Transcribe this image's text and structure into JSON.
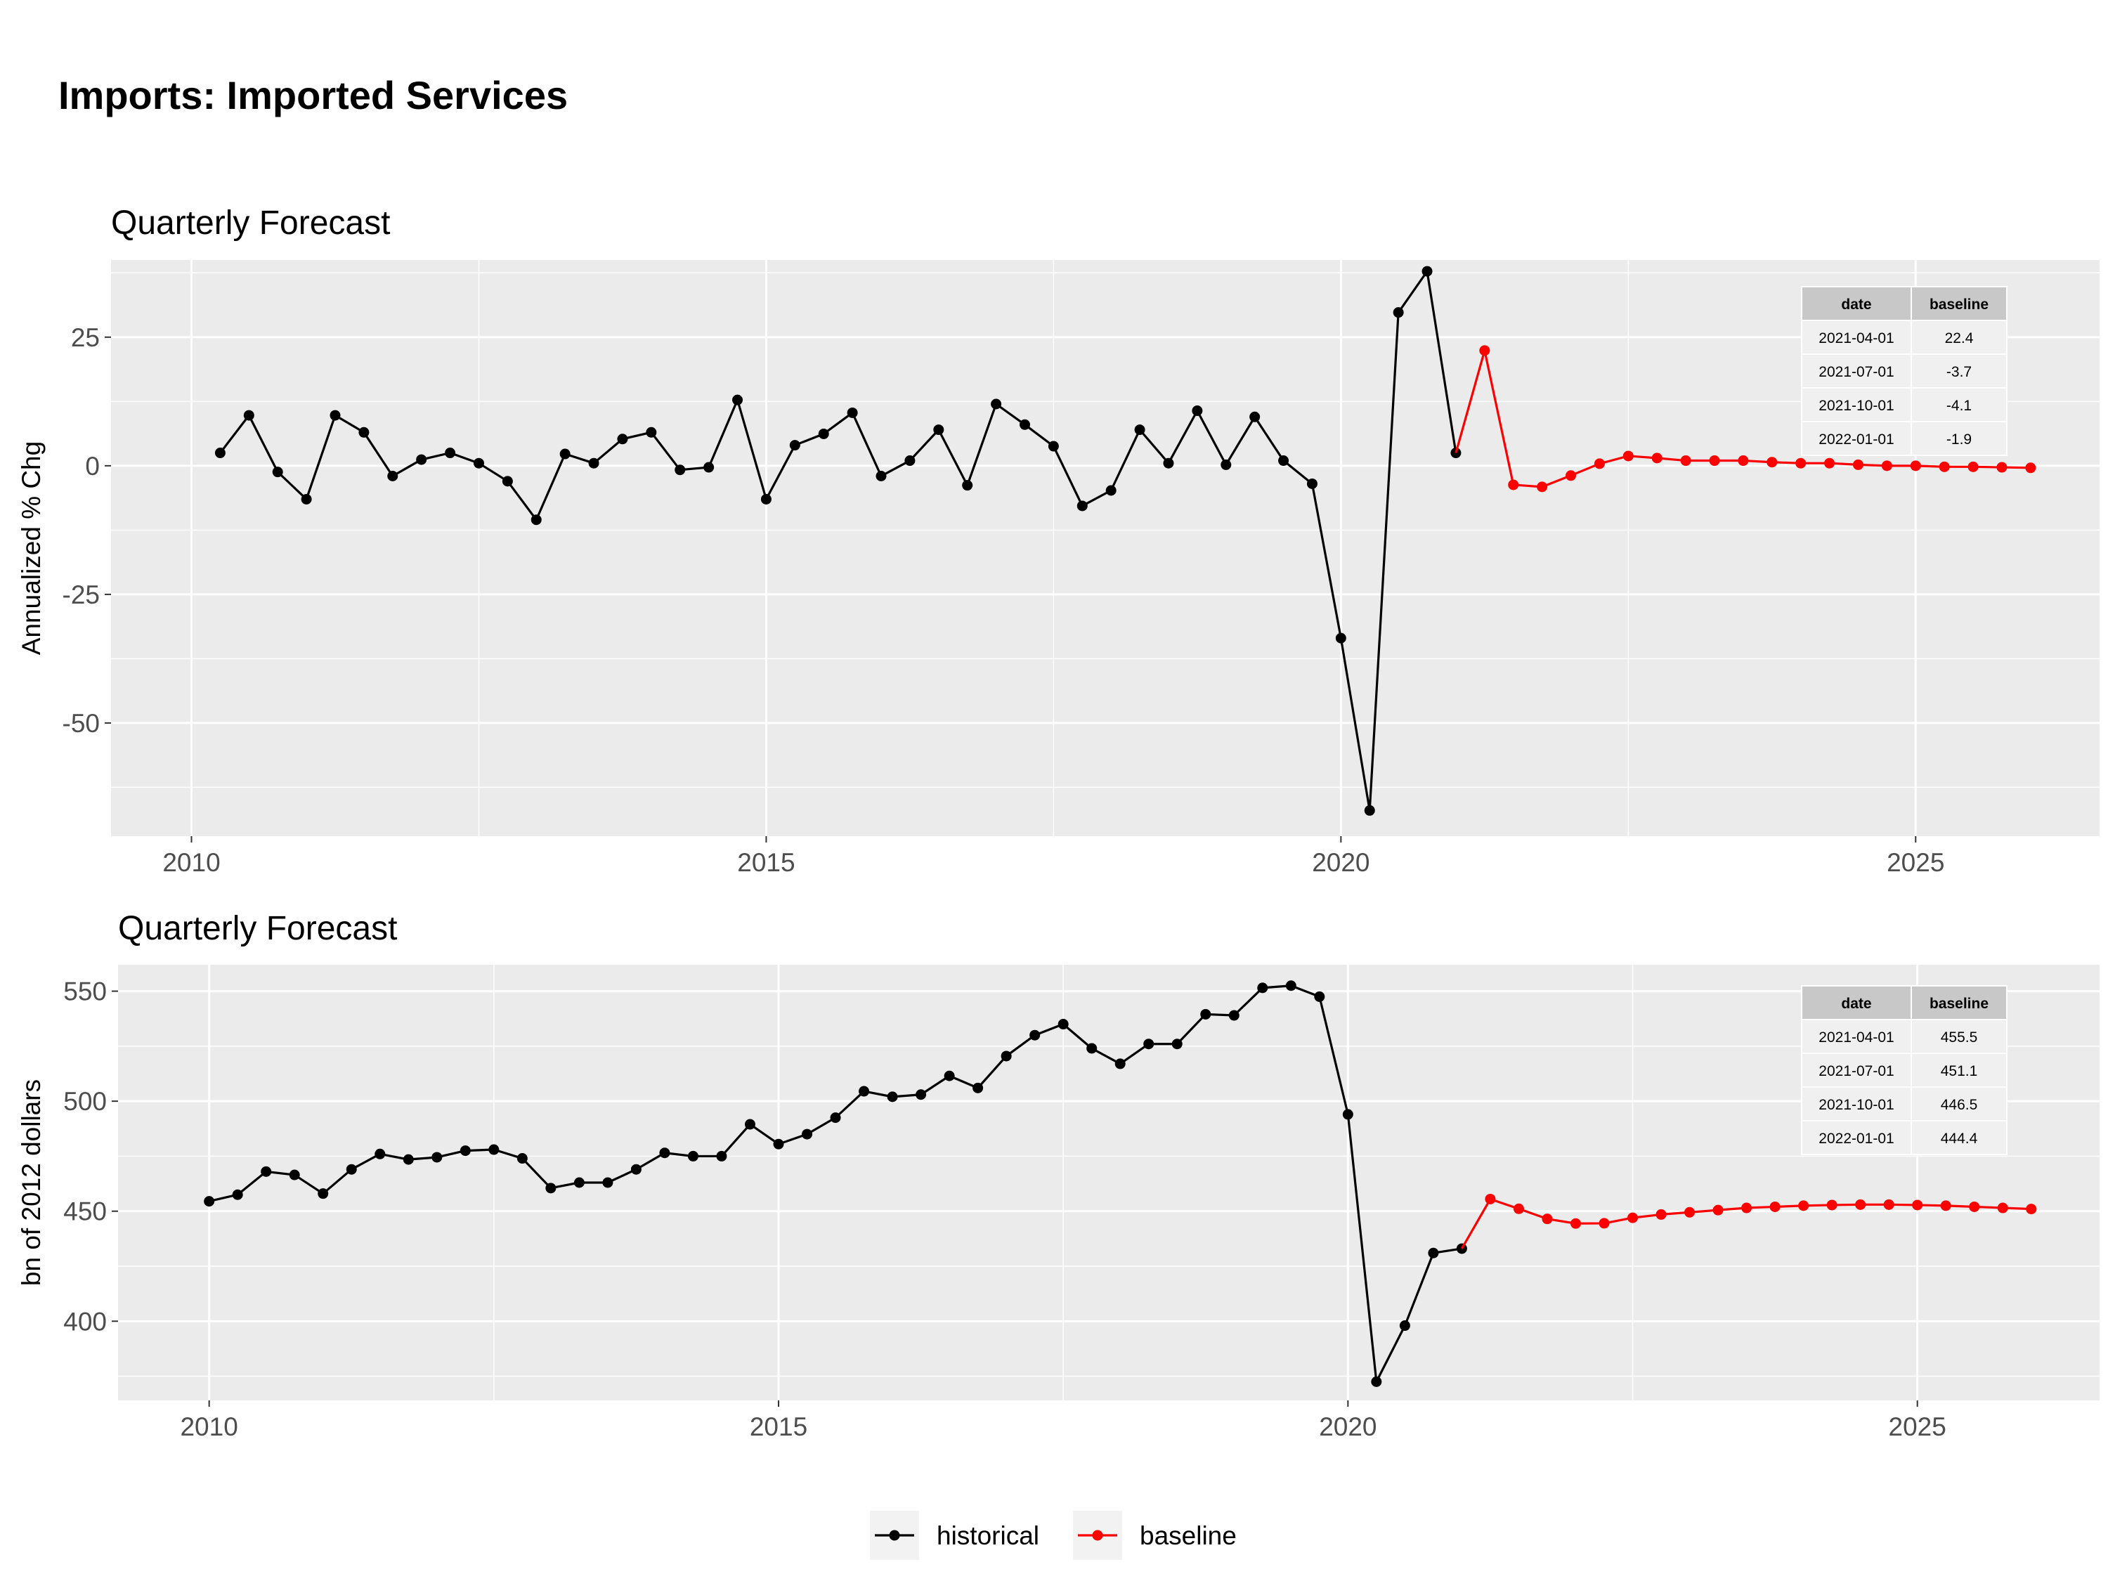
{
  "title": "Imports: Imported Services",
  "colors": {
    "historical": "#000000",
    "baseline": "#ff0000",
    "panel": "#ebebeb",
    "grid": "#ffffff",
    "table_head": "#c8c8c8",
    "table_cell": "#f0f0f0"
  },
  "legend": [
    {
      "key": "historical",
      "label": "historical"
    },
    {
      "key": "baseline",
      "label": "baseline"
    }
  ],
  "chart_data": [
    {
      "type": "line",
      "title": "Quarterly Forecast",
      "xlabel": "",
      "ylabel": "Annualized % Chg",
      "xlim": [
        2009.3,
        2026.6
      ],
      "ylim": [
        -72,
        40
      ],
      "x_ticks": [
        2010,
        2015,
        2020,
        2025
      ],
      "y_ticks": [
        -50,
        -25,
        0,
        25
      ],
      "grid": true,
      "series": [
        {
          "name": "historical",
          "x": [
            2010.25,
            2010.5,
            2010.75,
            2011.0,
            2011.25,
            2011.5,
            2011.75,
            2012.0,
            2012.25,
            2012.5,
            2012.75,
            2013.0,
            2013.25,
            2013.5,
            2013.75,
            2014.0,
            2014.25,
            2014.5,
            2014.75,
            2015.0,
            2015.25,
            2015.5,
            2015.75,
            2016.0,
            2016.25,
            2016.5,
            2016.75,
            2017.0,
            2017.25,
            2017.5,
            2017.75,
            2018.0,
            2018.25,
            2018.5,
            2018.75,
            2019.0,
            2019.25,
            2019.5,
            2019.75,
            2020.0,
            2020.25,
            2020.5,
            2020.75,
            2021.0
          ],
          "y": [
            2.5,
            9.8,
            -1.2,
            -6.5,
            9.8,
            6.5,
            -2.0,
            1.2,
            2.5,
            0.5,
            -3.0,
            -10.5,
            2.3,
            0.5,
            5.2,
            6.5,
            -0.8,
            -0.3,
            12.8,
            -6.5,
            4.0,
            6.2,
            10.3,
            -2.0,
            1.0,
            7.0,
            -3.8,
            12.0,
            8.0,
            3.8,
            -7.8,
            -4.8,
            7.0,
            0.5,
            10.7,
            0.2,
            9.5,
            1.0,
            -3.5,
            -33.5,
            -67.0,
            29.8,
            37.8,
            2.5
          ]
        },
        {
          "name": "baseline",
          "x": [
            2021.25,
            2021.5,
            2021.75,
            2022.0,
            2022.25,
            2022.5,
            2022.75,
            2023.0,
            2023.25,
            2023.5,
            2023.75,
            2024.0,
            2024.25,
            2024.5,
            2024.75,
            2025.0,
            2025.25,
            2025.5,
            2025.75,
            2026.0
          ],
          "y": [
            22.4,
            -3.7,
            -4.1,
            -1.9,
            0.4,
            1.9,
            1.5,
            1.0,
            1.0,
            1.0,
            0.7,
            0.5,
            0.5,
            0.2,
            0.0,
            0.0,
            -0.2,
            -0.2,
            -0.3,
            -0.4
          ]
        }
      ],
      "table": {
        "columns": [
          "date",
          "baseline"
        ],
        "rows": [
          [
            "2021-04-01",
            "22.4"
          ],
          [
            "2021-07-01",
            "-3.7"
          ],
          [
            "2021-10-01",
            "-4.1"
          ],
          [
            "2022-01-01",
            "-1.9"
          ]
        ]
      }
    },
    {
      "type": "line",
      "title": "Quarterly Forecast",
      "xlabel": "",
      "ylabel": "bn of 2012 dollars",
      "xlim": [
        2009.2,
        2026.6
      ],
      "ylim": [
        364,
        562
      ],
      "x_ticks": [
        2010,
        2015,
        2020,
        2025
      ],
      "y_ticks": [
        400,
        450,
        500,
        550
      ],
      "grid": true,
      "series": [
        {
          "name": "historical",
          "x": [
            2010.0,
            2010.25,
            2010.5,
            2010.75,
            2011.0,
            2011.25,
            2011.5,
            2011.75,
            2012.0,
            2012.25,
            2012.5,
            2012.75,
            2013.0,
            2013.25,
            2013.5,
            2013.75,
            2014.0,
            2014.25,
            2014.5,
            2014.75,
            2015.0,
            2015.25,
            2015.5,
            2015.75,
            2016.0,
            2016.25,
            2016.5,
            2016.75,
            2017.0,
            2017.25,
            2017.5,
            2017.75,
            2018.0,
            2018.25,
            2018.5,
            2018.75,
            2019.0,
            2019.25,
            2019.5,
            2019.75,
            2020.0,
            2020.25,
            2020.5,
            2020.75,
            2021.0
          ],
          "y": [
            454.5,
            457.5,
            468.0,
            466.5,
            458.0,
            469.0,
            476.0,
            473.5,
            474.5,
            477.5,
            478.0,
            474.0,
            460.5,
            463.0,
            463.0,
            469.0,
            476.5,
            475.0,
            475.0,
            489.5,
            480.5,
            485.0,
            492.5,
            504.5,
            502.0,
            503.0,
            511.5,
            506.0,
            520.5,
            530.0,
            535.0,
            524.0,
            517.0,
            526.0,
            526.0,
            539.5,
            539.0,
            551.5,
            552.5,
            547.5,
            494.0,
            372.5,
            398.0,
            431.0,
            433.0
          ]
        },
        {
          "name": "baseline",
          "x": [
            2021.25,
            2021.5,
            2021.75,
            2022.0,
            2022.25,
            2022.5,
            2022.75,
            2023.0,
            2023.25,
            2023.5,
            2023.75,
            2024.0,
            2024.25,
            2024.5,
            2024.75,
            2025.0,
            2025.25,
            2025.5,
            2025.75,
            2026.0
          ],
          "y": [
            455.5,
            451.1,
            446.5,
            444.4,
            444.5,
            447.0,
            448.5,
            449.5,
            450.5,
            451.5,
            452.0,
            452.5,
            452.8,
            453.0,
            453.0,
            452.8,
            452.5,
            452.0,
            451.5,
            451.0
          ]
        }
      ],
      "table": {
        "columns": [
          "date",
          "baseline"
        ],
        "rows": [
          [
            "2021-04-01",
            "455.5"
          ],
          [
            "2021-07-01",
            "451.1"
          ],
          [
            "2021-10-01",
            "446.5"
          ],
          [
            "2022-01-01",
            "444.4"
          ]
        ]
      }
    }
  ]
}
